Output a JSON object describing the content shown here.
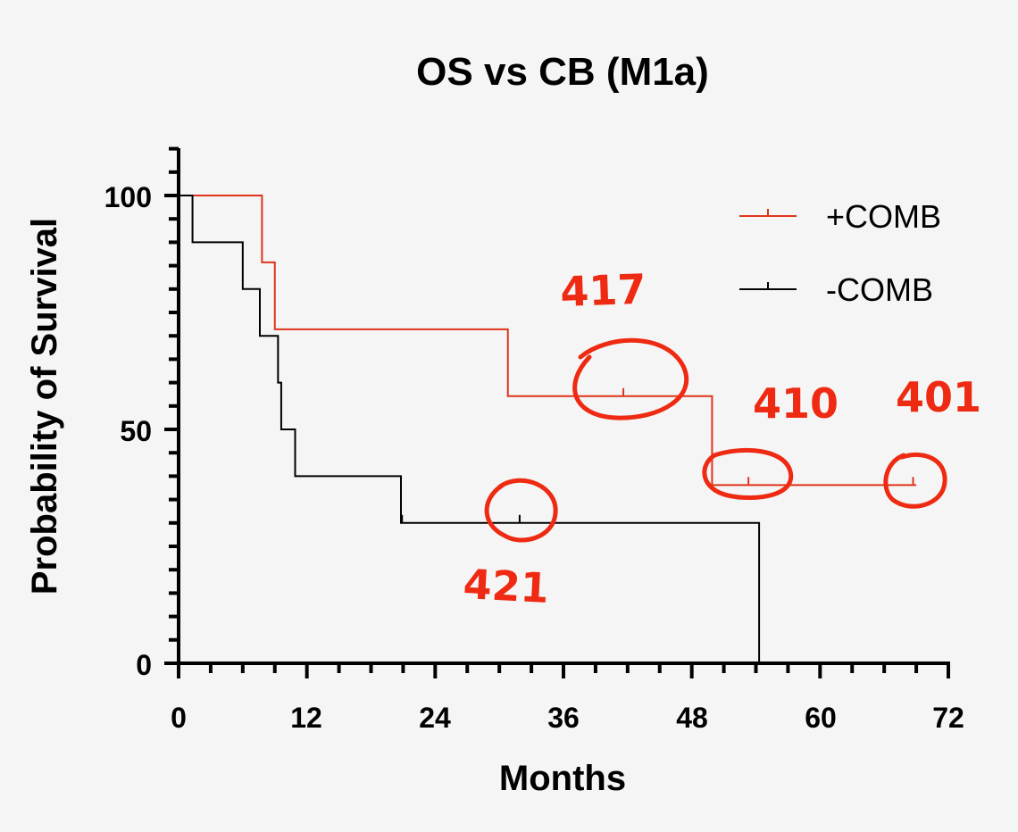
{
  "chart_data": {
    "type": "line",
    "subtype": "kaplan-meier-step",
    "title": "OS vs CB (M1a)",
    "xlabel": "Months",
    "ylabel": "Probability of Survival",
    "xlim": [
      0,
      72
    ],
    "ylim": [
      0,
      110
    ],
    "x_ticks": [
      "0",
      "12",
      "24",
      "36",
      "48",
      "60",
      "72"
    ],
    "y_ticks": [
      "0",
      "50",
      "100"
    ],
    "legend_position": "top-right",
    "series": [
      {
        "name": "+COMB",
        "color": "#e0341c",
        "steps": [
          [
            0,
            100
          ],
          [
            7.8,
            85.7
          ],
          [
            9,
            71.4
          ],
          [
            30.8,
            57.1
          ],
          [
            49.9,
            38.1
          ],
          [
            69,
            38.1
          ]
        ],
        "censored": [
          [
            41.6,
            57.1
          ],
          [
            53.3,
            38.1
          ],
          [
            68.7,
            38.1
          ]
        ]
      },
      {
        "name": "-COMB",
        "color": "#000000",
        "steps": [
          [
            0,
            100
          ],
          [
            1.3,
            90
          ],
          [
            6,
            80
          ],
          [
            7.6,
            70
          ],
          [
            9.3,
            60
          ],
          [
            9.6,
            50
          ],
          [
            10.9,
            40
          ],
          [
            20.8,
            30
          ],
          [
            54.3,
            0
          ]
        ],
        "censored": [
          [
            20.9,
            30
          ],
          [
            31.9,
            30
          ]
        ]
      }
    ],
    "annotations": {
      "color": "#ee2a12",
      "labels": [
        "417",
        "410",
        "401",
        "421"
      ]
    }
  }
}
